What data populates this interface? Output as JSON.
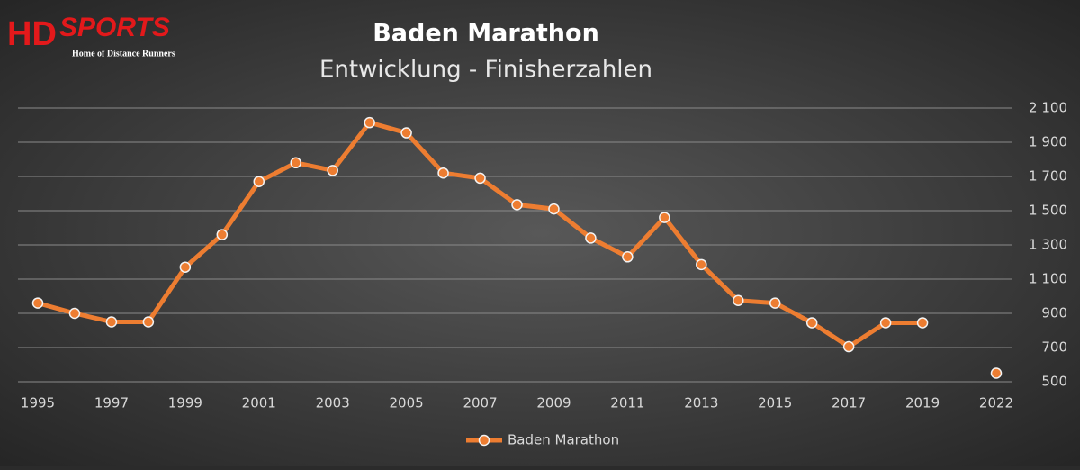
{
  "logo": {
    "mark": "HD",
    "brand": "SPORTS",
    "tagline": "Home of Distance Runners"
  },
  "chart_data": {
    "type": "line",
    "title": "Baden Marathon",
    "subtitle": "Entwicklung - Finisherzahlen",
    "categories": [
      "1995",
      null,
      "1997",
      null,
      "1999",
      null,
      "2001",
      null,
      "2003",
      null,
      "2005",
      null,
      "2007",
      null,
      "2009",
      null,
      "2011",
      null,
      "2013",
      null,
      "2015",
      null,
      "2017",
      null,
      "2019",
      null,
      "2022"
    ],
    "series": [
      {
        "name": "Baden Marathon",
        "color": "#ed7d31",
        "values": [
          960,
          900,
          850,
          850,
          1170,
          1360,
          1670,
          1780,
          1735,
          2015,
          1955,
          1720,
          1690,
          1535,
          1510,
          1340,
          1230,
          1460,
          1185,
          975,
          960,
          845,
          705,
          845,
          845,
          null,
          550
        ]
      }
    ],
    "ylim": [
      500,
      2100
    ],
    "yticks": [
      500,
      700,
      900,
      {
        "value": 1100,
        "label": "1 100"
      },
      {
        "value": 1300,
        "label": "1 300"
      },
      {
        "value": 1500,
        "label": "1 500"
      },
      {
        "value": 1700,
        "label": "1 700"
      },
      {
        "value": 1900,
        "label": "1 900"
      },
      {
        "value": 2100,
        "label": "2 100"
      }
    ],
    "grid": true,
    "legend": "bottom"
  }
}
